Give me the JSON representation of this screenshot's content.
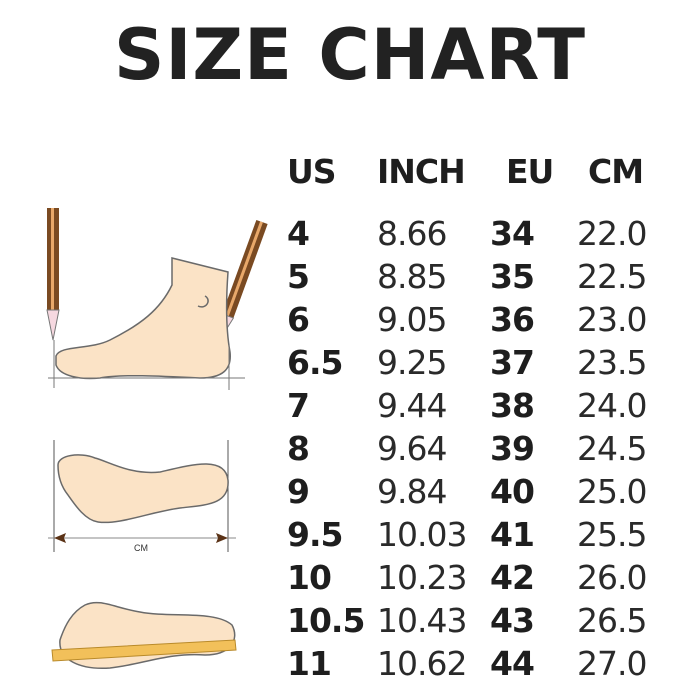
{
  "title": "SIZE CHART",
  "columns": [
    "US",
    "INCH",
    "EU",
    "CM"
  ],
  "rows": [
    [
      "4",
      "8.66",
      "34",
      "22.0"
    ],
    [
      "5",
      "8.85",
      "35",
      "22.5"
    ],
    [
      "6",
      "9.05",
      "36",
      "23.0"
    ],
    [
      "6.5",
      "9.25",
      "37",
      "23.5"
    ],
    [
      "7",
      "9.44",
      "38",
      "24.0"
    ],
    [
      "8",
      "9.64",
      "39",
      "24.5"
    ],
    [
      "9",
      "9.84",
      "40",
      "25.0"
    ],
    [
      "9.5",
      "10.03",
      "41",
      "25.5"
    ],
    [
      "10",
      "10.23",
      "42",
      "26.0"
    ],
    [
      "10.5",
      "10.43",
      "43",
      "26.5"
    ],
    [
      "11",
      "10.62",
      "44",
      "27.0"
    ]
  ],
  "illustration": {
    "measure_label": "CM"
  },
  "colors": {
    "skin": "#fbe3c6",
    "outline": "#6a6a6a",
    "pencil": "#7a4a22",
    "ruler": "#f2c05a"
  }
}
